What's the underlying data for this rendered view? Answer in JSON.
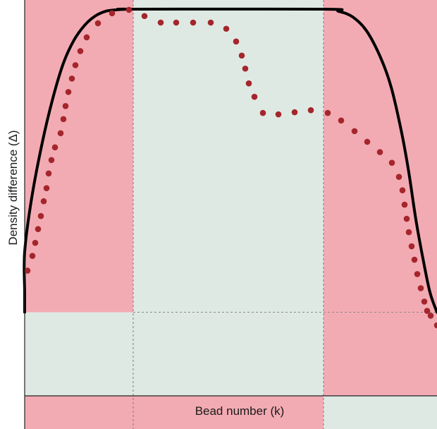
{
  "chart_data": {
    "type": "line",
    "title": "",
    "xlabel": "Bead number (k)",
    "ylabel": "Density difference (Δ)",
    "xlim": [
      0,
      620
    ],
    "ylim": [
      0,
      100
    ],
    "grid": false,
    "ticks": "none",
    "dividers_x": [
      189,
      459
    ],
    "dashed_level_y": 11.8,
    "colors": {
      "pink": "#f3abb3",
      "green": "#dfe9e3",
      "curve": "#000000",
      "dots": "#a4262c"
    },
    "regions": [
      {
        "x0": 0,
        "x1": 189,
        "y_lower": 0,
        "y_upper": 11.8,
        "color": "green"
      },
      {
        "x0": 0,
        "x1": 189,
        "y_lower": 11.8,
        "y_upper": 100,
        "color": "pink"
      },
      {
        "x0": 189,
        "x1": 459,
        "y_lower": 0,
        "y_upper": 100,
        "color": "green"
      },
      {
        "x0": 459,
        "x1": 620,
        "y_lower": 0,
        "y_upper": 100,
        "color": "pink"
      }
    ],
    "axis_band": [
      {
        "x0": 0,
        "x1": 189,
        "color": "pink"
      },
      {
        "x0": 189,
        "x1": 459,
        "color": "pink"
      },
      {
        "x0": 459,
        "x1": 620,
        "color": "green"
      }
    ],
    "series": [
      {
        "style": "solid-line",
        "x": [
          0,
          15,
          30,
          45,
          60,
          75,
          90,
          105,
          120,
          135,
          150,
          165,
          180,
          189,
          459,
          480,
          500,
          520,
          540,
          555,
          570,
          580,
          590,
          600,
          610,
          620
        ],
        "y": [
          11.8,
          17.6,
          29.4,
          45.1,
          61.2,
          74.1,
          84.3,
          91.0,
          95.3,
          98.0,
          99.4,
          99.8,
          100.0,
          100.0,
          100.0,
          99.4,
          97.8,
          93.7,
          85.9,
          77.3,
          63.9,
          52.5,
          38.8,
          27.5,
          17.6,
          11.8
        ]
      },
      {
        "style": "dots",
        "x": [
          39,
          46,
          50,
          54,
          58,
          62,
          66,
          69,
          73,
          78,
          86,
          90,
          93,
          97,
          102,
          107,
          114,
          123,
          139,
          159,
          183,
          205,
          228,
          250,
          274,
          299,
          321,
          335,
          343,
          348,
          353,
          361,
          373,
          395,
          418,
          441,
          465,
          484,
          503,
          521,
          539,
          556,
          566,
          571,
          574,
          577,
          580,
          584,
          588,
          592,
          597,
          602,
          606,
          611,
          620
        ],
        "y": [
          23.9,
          28.2,
          32.0,
          36.0,
          39.8,
          44.1,
          47.9,
          52.2,
          56.1,
          59.8,
          63.9,
          68.0,
          71.8,
          75.9,
          79.8,
          83.7,
          87.8,
          91.8,
          95.9,
          98.8,
          99.8,
          98.0,
          96.1,
          96.1,
          96.1,
          96.1,
          94.3,
          90.6,
          86.5,
          82.7,
          78.4,
          74.5,
          69.8,
          69.4,
          70.0,
          70.6,
          69.8,
          67.6,
          64.5,
          61.4,
          58.4,
          55.3,
          51.2,
          47.3,
          43.1,
          39.0,
          35.1,
          31.0,
          27.1,
          22.9,
          18.8,
          14.9,
          12.2,
          10.8,
          8.0
        ]
      }
    ]
  }
}
